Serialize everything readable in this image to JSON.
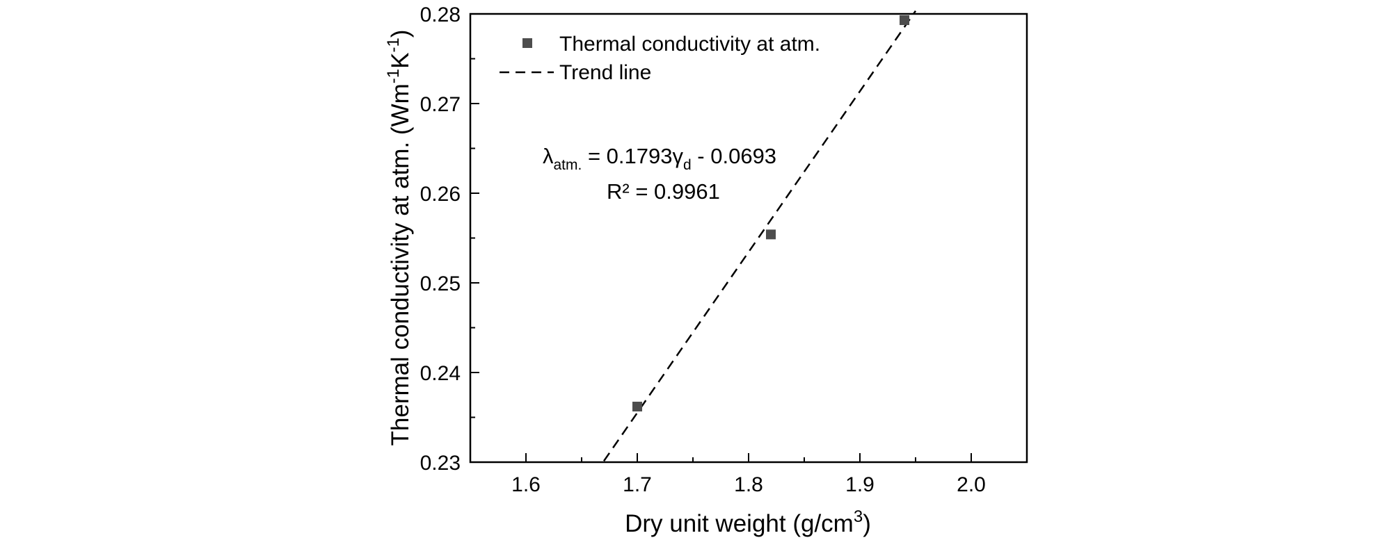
{
  "chart_data": {
    "type": "scatter",
    "title": "",
    "xlabel": "Dry unit weight (g/cm",
    "xlabel_sup": "3",
    "xlabel_end": ")",
    "ylabel": "Thermal conductivity at atm. (Wm",
    "ylabel_sup1": "-1",
    "ylabel_mid": "K",
    "ylabel_sup2": "-1",
    "ylabel_end": ")",
    "xlim": [
      1.55,
      2.05
    ],
    "ylim": [
      0.23,
      0.28
    ],
    "x_ticks": [
      1.6,
      1.7,
      1.8,
      1.9,
      2.0
    ],
    "x_tick_labels": [
      "1.6",
      "1.7",
      "1.8",
      "1.9",
      "2.0"
    ],
    "y_ticks": [
      0.23,
      0.24,
      0.25,
      0.26,
      0.27,
      0.28
    ],
    "y_tick_labels": [
      "0.23",
      "0.24",
      "0.25",
      "0.26",
      "0.27",
      "0.28"
    ],
    "grid": false,
    "legend_position": "top-left",
    "series": [
      {
        "name": "Thermal conductivity at atm.",
        "marker": "square",
        "color": "#4d4d4d",
        "x": [
          1.7,
          1.82,
          1.94
        ],
        "y": [
          0.2362,
          0.2554,
          0.2793
        ]
      }
    ],
    "trend_line": {
      "name": "Trend line",
      "style": "dashed",
      "color": "#000000",
      "slope": 0.1793,
      "intercept": -0.0693,
      "x_range": [
        1.67,
        1.95
      ]
    },
    "annotations": {
      "equation_lambda": "λ",
      "equation_sub1": "atm.",
      "equation_mid": " = 0.1793γ",
      "equation_sub2": "d",
      "equation_end": " - 0.0693",
      "r_squared": "R² = 0.9961"
    }
  }
}
